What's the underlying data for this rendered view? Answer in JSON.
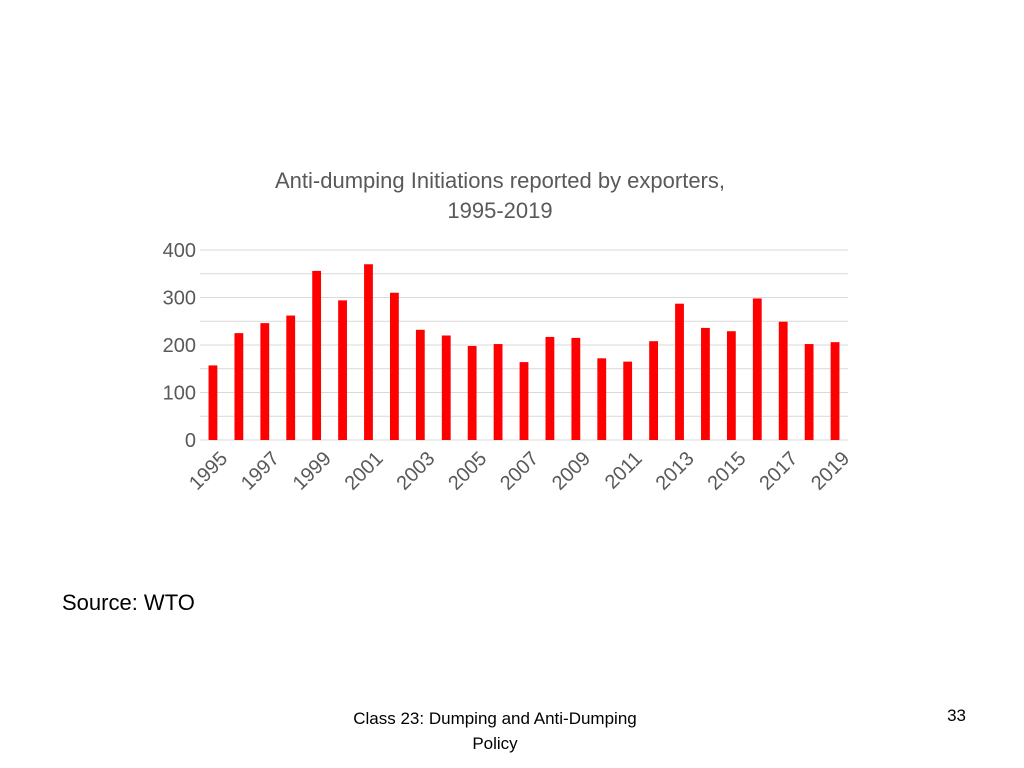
{
  "slide": {
    "source_text": "Source:  WTO",
    "footer_line1": "Class 23:  Dumping and Anti-Dumping",
    "footer_line2": "Policy",
    "page_number": "33"
  },
  "chart_data": {
    "type": "bar",
    "title_line1": "Anti-dumping Initiations reported by exporters,",
    "title_line2": "1995-2019",
    "xlabel": "",
    "ylabel": "",
    "categories": [
      "1995",
      "1996",
      "1997",
      "1998",
      "1999",
      "2000",
      "2001",
      "2002",
      "2003",
      "2004",
      "2005",
      "2006",
      "2007",
      "2008",
      "2009",
      "2010",
      "2011",
      "2012",
      "2013",
      "2014",
      "2015",
      "2016",
      "2017",
      "2018",
      "2019"
    ],
    "tick_labels_x": [
      "1995",
      "1997",
      "1999",
      "2001",
      "2003",
      "2005",
      "2007",
      "2009",
      "2011",
      "2013",
      "2015",
      "2017",
      "2019"
    ],
    "values": [
      157,
      225,
      246,
      262,
      356,
      294,
      370,
      310,
      232,
      220,
      198,
      202,
      164,
      217,
      215,
      172,
      165,
      208,
      287,
      236,
      229,
      298,
      249,
      202,
      206
    ],
    "ylim": [
      0,
      400
    ],
    "yticks": [
      0,
      100,
      200,
      300,
      400
    ],
    "grid": true,
    "legend": "none",
    "bar_color": "#ff0000",
    "grid_color": "#d9d9d9",
    "text_color": "#595959"
  }
}
